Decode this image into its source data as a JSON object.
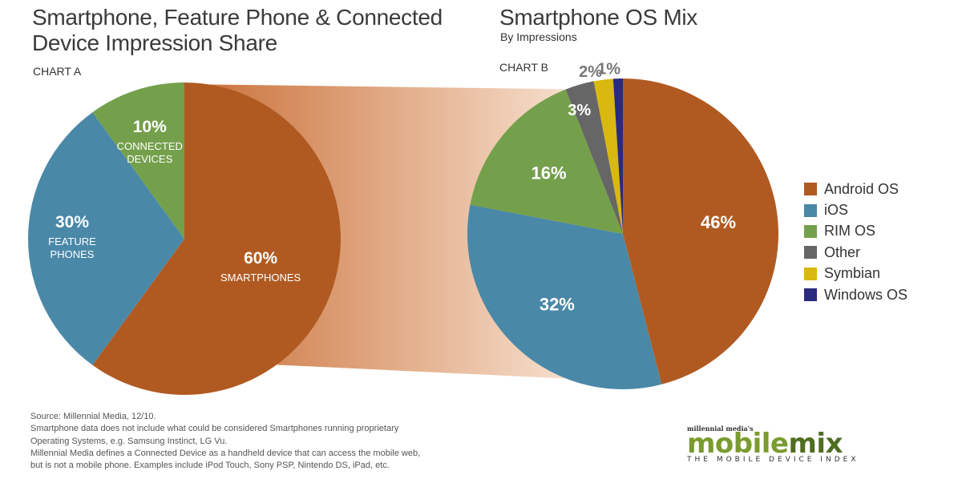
{
  "chart_a": {
    "title": "Smartphone, Feature Phone & Connected Device Impression Share",
    "chart_label": "CHART A"
  },
  "chart_b": {
    "title": "Smartphone OS Mix",
    "subtitle": "By Impressions",
    "chart_label": "CHART B"
  },
  "chart_data": [
    {
      "type": "pie",
      "title": "Smartphone, Feature Phone & Connected Device Impression Share",
      "slices": [
        {
          "label": "SMARTPHONES",
          "value": 60,
          "value_text": "60%",
          "color": "#b05a22"
        },
        {
          "label": "FEATURE PHONES",
          "value": 30,
          "value_text": "30%",
          "color": "#4a88a8"
        },
        {
          "label": "CONNECTED DEVICES",
          "value": 10,
          "value_text": "10%",
          "color": "#74a04b"
        }
      ]
    },
    {
      "type": "pie",
      "title": "Smartphone OS Mix",
      "subtitle": "By Impressions",
      "slices": [
        {
          "label": "Android OS",
          "value": 46,
          "value_text": "46%",
          "color": "#b05a22"
        },
        {
          "label": "iOS",
          "value": 32,
          "value_text": "32%",
          "color": "#4a88a8"
        },
        {
          "label": "RIM OS",
          "value": 16,
          "value_text": "16%",
          "color": "#74a04b"
        },
        {
          "label": "Other",
          "value": 3,
          "value_text": "3%",
          "color": "#666666"
        },
        {
          "label": "Symbian",
          "value": 2,
          "value_text": "2%",
          "color": "#d9b80f"
        },
        {
          "label": "Windows OS",
          "value": 1,
          "value_text": "1%",
          "color": "#2a2a7e"
        }
      ],
      "legend_position": "right"
    }
  ],
  "footer": {
    "lines": [
      "Source: Millennial Media, 12/10.",
      "Smartphone data does not include what could be considered Smartphones running proprietary",
      "Operating Systems, e.g. Samsung Instinct, LG Vu.",
      "Millennial Media defines a Connected Device as a handheld device that can access the mobile web,",
      "but is not a mobile phone. Examples include iPod Touch, Sony PSP, Nintendo DS, iPad, etc."
    ]
  },
  "logo": {
    "small_text": "millennial media's",
    "part1": "mobile",
    "part2": "mix",
    "tagline": "THE MOBILE DEVICE INDEX"
  }
}
